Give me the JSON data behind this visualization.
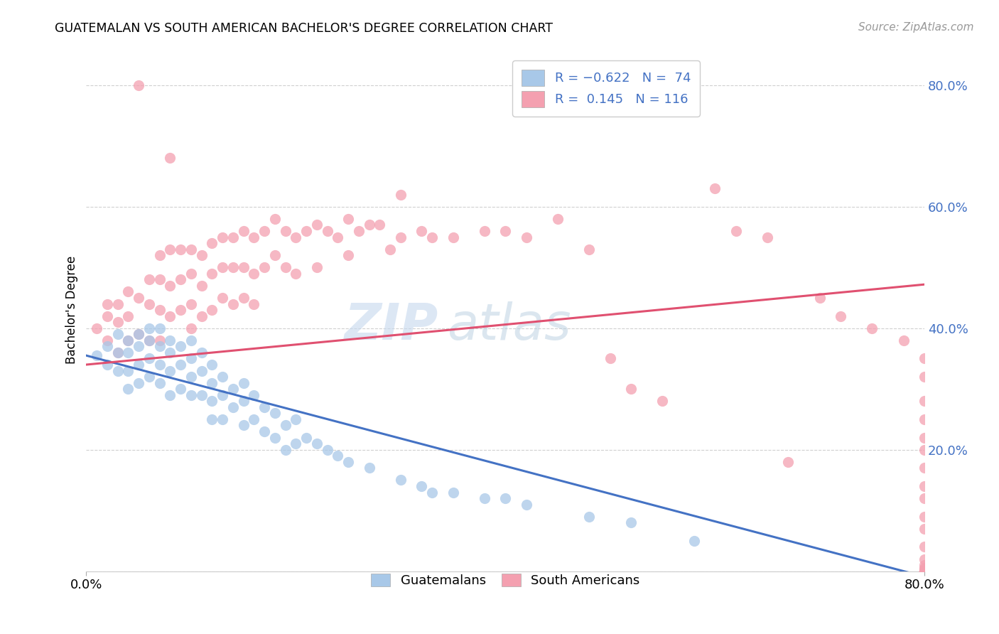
{
  "title": "GUATEMALAN VS SOUTH AMERICAN BACHELOR'S DEGREE CORRELATION CHART",
  "source": "Source: ZipAtlas.com",
  "ylabel": "Bachelor's Degree",
  "watermark_zip": "ZIP",
  "watermark_atlas": "atlas",
  "legend_label_blue": "R = -0.622   N =  74",
  "legend_label_pink": "R =  0.145   N = 116",
  "legend_guatemalans": "Guatemalans",
  "legend_south_americans": "South Americans",
  "blue_color": "#a8c8e8",
  "pink_color": "#f4a0b0",
  "blue_line_color": "#4472c4",
  "pink_line_color": "#e05070",
  "blue_intercept": 0.355,
  "blue_slope": -0.455,
  "pink_intercept": 0.34,
  "pink_slope": 0.165,
  "x_min": 0.0,
  "x_max": 0.8,
  "y_min": 0.0,
  "y_max": 0.86,
  "yticks": [
    0.0,
    0.2,
    0.4,
    0.6,
    0.8
  ],
  "ytick_labels": [
    "",
    "20.0%",
    "40.0%",
    "60.0%",
    "80.0%"
  ],
  "blue_points_x": [
    0.01,
    0.02,
    0.02,
    0.03,
    0.03,
    0.03,
    0.04,
    0.04,
    0.04,
    0.04,
    0.05,
    0.05,
    0.05,
    0.05,
    0.06,
    0.06,
    0.06,
    0.06,
    0.07,
    0.07,
    0.07,
    0.07,
    0.08,
    0.08,
    0.08,
    0.08,
    0.09,
    0.09,
    0.09,
    0.1,
    0.1,
    0.1,
    0.1,
    0.11,
    0.11,
    0.11,
    0.12,
    0.12,
    0.12,
    0.12,
    0.13,
    0.13,
    0.13,
    0.14,
    0.14,
    0.15,
    0.15,
    0.15,
    0.16,
    0.16,
    0.17,
    0.17,
    0.18,
    0.18,
    0.19,
    0.19,
    0.2,
    0.2,
    0.21,
    0.22,
    0.23,
    0.24,
    0.25,
    0.27,
    0.3,
    0.32,
    0.33,
    0.35,
    0.38,
    0.4,
    0.42,
    0.48,
    0.52,
    0.58
  ],
  "blue_points_y": [
    0.355,
    0.37,
    0.34,
    0.39,
    0.36,
    0.33,
    0.38,
    0.36,
    0.33,
    0.3,
    0.39,
    0.37,
    0.34,
    0.31,
    0.4,
    0.38,
    0.35,
    0.32,
    0.4,
    0.37,
    0.34,
    0.31,
    0.38,
    0.36,
    0.33,
    0.29,
    0.37,
    0.34,
    0.3,
    0.38,
    0.35,
    0.32,
    0.29,
    0.36,
    0.33,
    0.29,
    0.34,
    0.31,
    0.28,
    0.25,
    0.32,
    0.29,
    0.25,
    0.3,
    0.27,
    0.31,
    0.28,
    0.24,
    0.29,
    0.25,
    0.27,
    0.23,
    0.26,
    0.22,
    0.24,
    0.2,
    0.25,
    0.21,
    0.22,
    0.21,
    0.2,
    0.19,
    0.18,
    0.17,
    0.15,
    0.14,
    0.13,
    0.13,
    0.12,
    0.12,
    0.11,
    0.09,
    0.08,
    0.05
  ],
  "pink_points_x": [
    0.01,
    0.02,
    0.02,
    0.02,
    0.03,
    0.03,
    0.03,
    0.04,
    0.04,
    0.04,
    0.05,
    0.05,
    0.05,
    0.06,
    0.06,
    0.06,
    0.07,
    0.07,
    0.07,
    0.07,
    0.08,
    0.08,
    0.08,
    0.08,
    0.09,
    0.09,
    0.09,
    0.1,
    0.1,
    0.1,
    0.1,
    0.11,
    0.11,
    0.11,
    0.12,
    0.12,
    0.12,
    0.13,
    0.13,
    0.13,
    0.14,
    0.14,
    0.14,
    0.15,
    0.15,
    0.15,
    0.16,
    0.16,
    0.16,
    0.17,
    0.17,
    0.18,
    0.18,
    0.19,
    0.19,
    0.2,
    0.2,
    0.21,
    0.22,
    0.22,
    0.23,
    0.24,
    0.25,
    0.25,
    0.26,
    0.27,
    0.28,
    0.29,
    0.3,
    0.3,
    0.32,
    0.33,
    0.35,
    0.38,
    0.4,
    0.42,
    0.45,
    0.48,
    0.5,
    0.52,
    0.55,
    0.6,
    0.62,
    0.65,
    0.67,
    0.7,
    0.72,
    0.75,
    0.78,
    0.8,
    0.8,
    0.8,
    0.8,
    0.8,
    0.8,
    0.8,
    0.8,
    0.8,
    0.8,
    0.8,
    0.8,
    0.8,
    0.8,
    0.8,
    0.8,
    0.8,
    0.8,
    0.8,
    0.8,
    0.8,
    0.8,
    0.8,
    0.8,
    0.8,
    0.8,
    0.8,
    0.8
  ],
  "pink_points_y": [
    0.4,
    0.44,
    0.42,
    0.38,
    0.44,
    0.41,
    0.36,
    0.46,
    0.42,
    0.38,
    0.8,
    0.45,
    0.39,
    0.48,
    0.44,
    0.38,
    0.52,
    0.48,
    0.43,
    0.38,
    0.68,
    0.53,
    0.47,
    0.42,
    0.53,
    0.48,
    0.43,
    0.53,
    0.49,
    0.44,
    0.4,
    0.52,
    0.47,
    0.42,
    0.54,
    0.49,
    0.43,
    0.55,
    0.5,
    0.45,
    0.55,
    0.5,
    0.44,
    0.56,
    0.5,
    0.45,
    0.55,
    0.49,
    0.44,
    0.56,
    0.5,
    0.58,
    0.52,
    0.56,
    0.5,
    0.55,
    0.49,
    0.56,
    0.57,
    0.5,
    0.56,
    0.55,
    0.58,
    0.52,
    0.56,
    0.57,
    0.57,
    0.53,
    0.62,
    0.55,
    0.56,
    0.55,
    0.55,
    0.56,
    0.56,
    0.55,
    0.58,
    0.53,
    0.35,
    0.3,
    0.28,
    0.63,
    0.56,
    0.55,
    0.18,
    0.45,
    0.42,
    0.4,
    0.38,
    0.35,
    0.32,
    0.28,
    0.25,
    0.22,
    0.2,
    0.17,
    0.14,
    0.12,
    0.09,
    0.07,
    0.04,
    0.02,
    0.01,
    0.005,
    0.003,
    0.001,
    0.0,
    0.0,
    0.0,
    0.0,
    0.0,
    0.0,
    0.0,
    0.0,
    0.0,
    0.0,
    0.0
  ]
}
